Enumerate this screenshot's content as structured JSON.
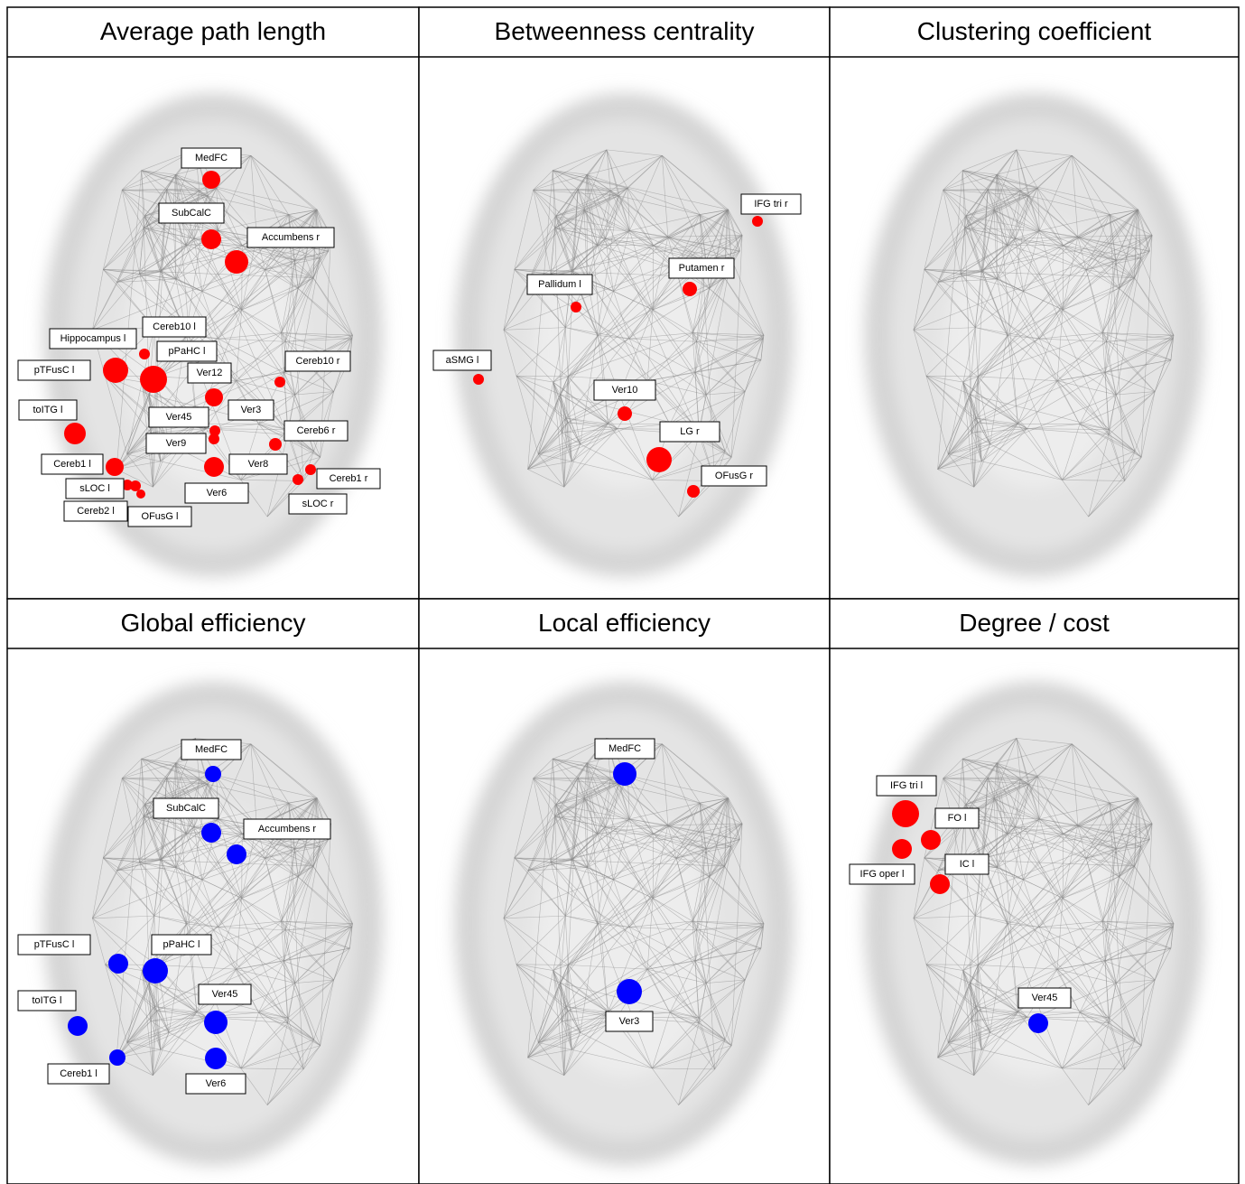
{
  "panels": [
    {
      "title": "Average path length",
      "nodes": [
        {
          "label": "Cereb10 l",
          "color": "#ff0000"
        },
        {
          "label": "Hippocampus l",
          "color": "#ff0000"
        },
        {
          "label": "pPaHC l",
          "color": "#ff0000"
        },
        {
          "label": "pTFusC l",
          "color": "#ff0000"
        },
        {
          "label": "Cereb10 r",
          "color": "#ff0000"
        },
        {
          "label": "Ver12",
          "color": "#ff0000"
        },
        {
          "label": "toITG l",
          "color": "#ff0000"
        },
        {
          "label": "Ver3",
          "color": "#ff0000"
        },
        {
          "label": "Ver45",
          "color": "#ff0000"
        },
        {
          "label": "Cereb6 r",
          "color": "#ff0000"
        },
        {
          "label": "Ver9",
          "color": "#ff0000"
        },
        {
          "label": "Cereb1 l",
          "color": "#ff0000"
        },
        {
          "label": "Ver8",
          "color": "#ff0000"
        },
        {
          "label": "Cereb1 r",
          "color": "#ff0000"
        },
        {
          "label": "sLOC l",
          "color": "#ff0000"
        },
        {
          "label": "Ver6",
          "color": "#ff0000"
        },
        {
          "label": "sLOC r",
          "color": "#ff0000"
        },
        {
          "label": "Cereb2 l",
          "color": "#ff0000"
        },
        {
          "label": "OFusG l",
          "color": "#ff0000"
        },
        {
          "label": "MedFC",
          "color": "#ff0000"
        },
        {
          "label": "SubCalC",
          "color": "#ff0000"
        },
        {
          "label": "Accumbens r",
          "color": "#ff0000"
        }
      ]
    },
    {
      "title": "Betweenness centrality",
      "nodes": [
        {
          "label": "IFG tri r",
          "color": "#ff0000"
        },
        {
          "label": "Putamen r",
          "color": "#ff0000"
        },
        {
          "label": "Pallidum l",
          "color": "#ff0000"
        },
        {
          "label": "aSMG l",
          "color": "#ff0000"
        },
        {
          "label": "Ver10",
          "color": "#ff0000"
        },
        {
          "label": "LG r",
          "color": "#ff0000"
        },
        {
          "label": "OFusG r",
          "color": "#ff0000"
        }
      ]
    },
    {
      "title": "Clustering coefficient",
      "nodes": []
    },
    {
      "title": "Global efficiency",
      "nodes": [
        {
          "label": "MedFC",
          "color": "#0000ff"
        },
        {
          "label": "SubCalC",
          "color": "#0000ff"
        },
        {
          "label": "Accumbens r",
          "color": "#0000ff"
        },
        {
          "label": "pTFusC l",
          "color": "#0000ff"
        },
        {
          "label": "pPaHC l",
          "color": "#0000ff"
        },
        {
          "label": "Ver45",
          "color": "#0000ff"
        },
        {
          "label": "toITG l",
          "color": "#0000ff"
        },
        {
          "label": "Ver6",
          "color": "#0000ff"
        },
        {
          "label": "Cereb1 l",
          "color": "#0000ff"
        }
      ]
    },
    {
      "title": "Local efficiency",
      "nodes": [
        {
          "label": "MedFC",
          "color": "#0000ff"
        },
        {
          "label": "Ver3",
          "color": "#0000ff"
        }
      ]
    },
    {
      "title": "Degree / cost",
      "nodes": [
        {
          "label": "IFG tri l",
          "color": "#ff0000"
        },
        {
          "label": "FO l",
          "color": "#ff0000"
        },
        {
          "label": "IFG oper l",
          "color": "#ff0000"
        },
        {
          "label": "IC l",
          "color": "#ff0000"
        },
        {
          "label": "Ver45",
          "color": "#0000ff"
        }
      ]
    }
  ]
}
